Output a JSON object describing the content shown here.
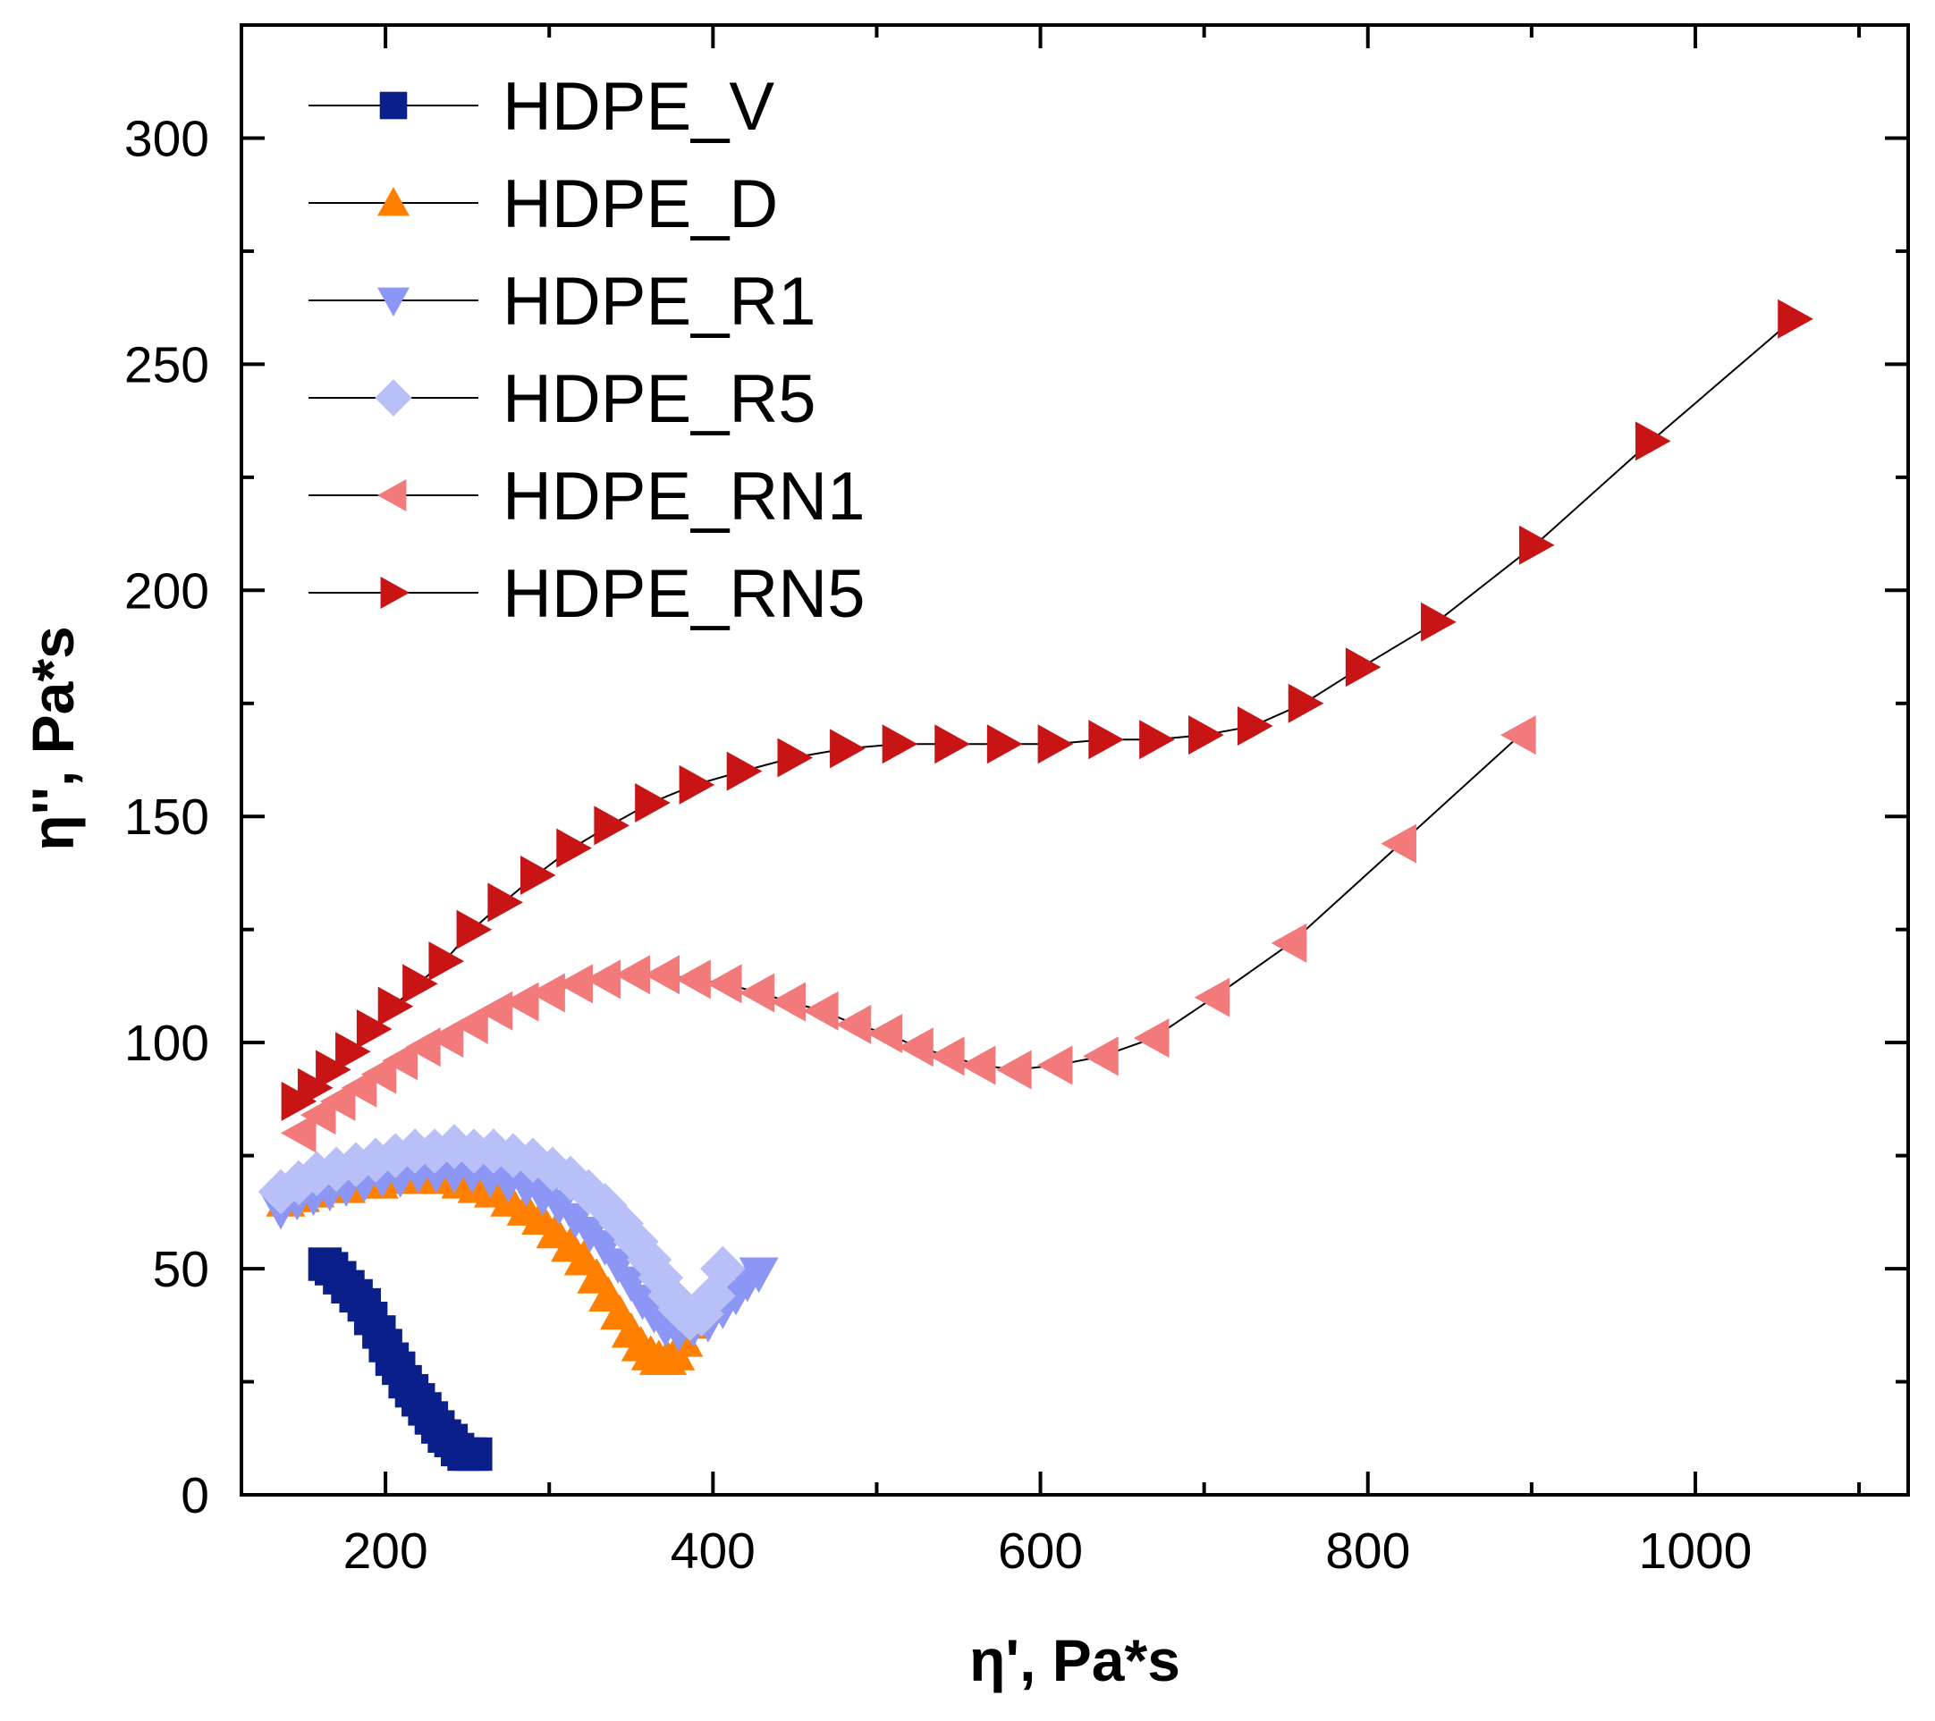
{
  "chart_data": {
    "type": "scatter",
    "xlabel": "η', Pa*s",
    "ylabel": "η'', Pa*s",
    "xlim": [
      112,
      1130
    ],
    "ylim": [
      0,
      325
    ],
    "x_ticks": [
      200,
      400,
      600,
      800,
      1000
    ],
    "y_ticks": [
      0,
      50,
      100,
      150,
      200,
      250,
      300
    ],
    "grid": false,
    "legend_position": "top-left",
    "series": [
      {
        "name": "HDPE_V",
        "marker": "square",
        "color": "#0a1f8a",
        "points": [
          [
            163,
            51
          ],
          [
            167,
            50
          ],
          [
            172,
            48
          ],
          [
            177,
            46
          ],
          [
            182,
            44
          ],
          [
            187,
            42
          ],
          [
            191,
            39
          ],
          [
            196,
            36
          ],
          [
            200,
            33
          ],
          [
            204,
            30
          ],
          [
            208,
            28
          ],
          [
            212,
            25
          ],
          [
            216,
            23
          ],
          [
            220,
            21
          ],
          [
            224,
            19
          ],
          [
            228,
            17
          ],
          [
            232,
            15
          ],
          [
            236,
            13
          ],
          [
            240,
            12
          ],
          [
            244,
            10
          ],
          [
            248,
            9
          ],
          [
            252,
            9
          ],
          [
            255,
            9
          ]
        ]
      },
      {
        "name": "HDPE_D",
        "marker": "triangle-up",
        "color": "#ff7f00",
        "points": [
          [
            139,
            65
          ],
          [
            148,
            66
          ],
          [
            157,
            67
          ],
          [
            166,
            68
          ],
          [
            176,
            68
          ],
          [
            186,
            69
          ],
          [
            196,
            69
          ],
          [
            206,
            70
          ],
          [
            216,
            70
          ],
          [
            226,
            70
          ],
          [
            236,
            70
          ],
          [
            246,
            69
          ],
          [
            256,
            68
          ],
          [
            266,
            67
          ],
          [
            276,
            65
          ],
          [
            286,
            63
          ],
          [
            295,
            61
          ],
          [
            304,
            58
          ],
          [
            313,
            55
          ],
          [
            321,
            52
          ],
          [
            329,
            48
          ],
          [
            336,
            44
          ],
          [
            343,
            40
          ],
          [
            350,
            36
          ],
          [
            356,
            33
          ],
          [
            362,
            31
          ],
          [
            367,
            30
          ],
          [
            372,
            30
          ],
          [
            377,
            31
          ],
          [
            382,
            34
          ],
          [
            387,
            38
          ]
        ]
      },
      {
        "name": "HDPE_R1",
        "marker": "triangle-down",
        "color": "#8c96f5",
        "points": [
          [
            136,
            63
          ],
          [
            146,
            65
          ],
          [
            156,
            66
          ],
          [
            166,
            67
          ],
          [
            176,
            68
          ],
          [
            187,
            69
          ],
          [
            198,
            70
          ],
          [
            209,
            70
          ],
          [
            220,
            71
          ],
          [
            231,
            71
          ],
          [
            242,
            71
          ],
          [
            253,
            71
          ],
          [
            264,
            70
          ],
          [
            275,
            69
          ],
          [
            286,
            68
          ],
          [
            296,
            66
          ],
          [
            306,
            64
          ],
          [
            316,
            61
          ],
          [
            325,
            58
          ],
          [
            334,
            55
          ],
          [
            342,
            51
          ],
          [
            350,
            47
          ],
          [
            357,
            43
          ],
          [
            364,
            40
          ],
          [
            371,
            37
          ],
          [
            379,
            36
          ],
          [
            388,
            37
          ],
          [
            397,
            38
          ],
          [
            406,
            41
          ],
          [
            414,
            44
          ],
          [
            421,
            47
          ],
          [
            428,
            49
          ]
        ]
      },
      {
        "name": "HDPE_R5",
        "marker": "diamond",
        "color": "#b9c0f8",
        "points": [
          [
            136,
            67
          ],
          [
            147,
            69
          ],
          [
            158,
            71
          ],
          [
            170,
            72
          ],
          [
            182,
            73
          ],
          [
            194,
            74
          ],
          [
            206,
            75
          ],
          [
            218,
            76
          ],
          [
            230,
            76
          ],
          [
            242,
            77
          ],
          [
            254,
            76
          ],
          [
            266,
            76
          ],
          [
            278,
            75
          ],
          [
            290,
            74
          ],
          [
            302,
            72
          ],
          [
            313,
            70
          ],
          [
            324,
            67
          ],
          [
            334,
            64
          ],
          [
            344,
            60
          ],
          [
            353,
            56
          ],
          [
            361,
            52
          ],
          [
            368,
            48
          ],
          [
            374,
            44
          ],
          [
            380,
            41
          ],
          [
            386,
            39
          ],
          [
            393,
            40
          ],
          [
            400,
            44
          ],
          [
            406,
            50
          ]
        ]
      },
      {
        "name": "HDPE_RN1",
        "marker": "triangle-left",
        "color": "#f27a7a",
        "points": [
          [
            148,
            80
          ],
          [
            160,
            84
          ],
          [
            172,
            87
          ],
          [
            185,
            90
          ],
          [
            197,
            93
          ],
          [
            210,
            96
          ],
          [
            224,
            99
          ],
          [
            238,
            101
          ],
          [
            253,
            104
          ],
          [
            268,
            107
          ],
          [
            284,
            109
          ],
          [
            300,
            111
          ],
          [
            317,
            113
          ],
          [
            334,
            114
          ],
          [
            352,
            115
          ],
          [
            370,
            115
          ],
          [
            389,
            114
          ],
          [
            408,
            113
          ],
          [
            428,
            111
          ],
          [
            447,
            109
          ],
          [
            467,
            107
          ],
          [
            487,
            104
          ],
          [
            506,
            102
          ],
          [
            525,
            99
          ],
          [
            544,
            97
          ],
          [
            563,
            95
          ],
          [
            585,
            94
          ],
          [
            610,
            95
          ],
          [
            638,
            97
          ],
          [
            669,
            101
          ],
          [
            706,
            110
          ],
          [
            753,
            122
          ],
          [
            820,
            144
          ],
          [
            893,
            168
          ]
        ]
      },
      {
        "name": "HDPE_RN5",
        "marker": "triangle-right",
        "color": "#c81414",
        "points": [
          [
            146,
            87
          ],
          [
            156,
            90
          ],
          [
            167,
            94
          ],
          [
            179,
            98
          ],
          [
            192,
            103
          ],
          [
            205,
            108
          ],
          [
            220,
            113
          ],
          [
            236,
            118
          ],
          [
            253,
            125
          ],
          [
            272,
            131
          ],
          [
            292,
            137
          ],
          [
            314,
            143
          ],
          [
            337,
            148
          ],
          [
            362,
            153
          ],
          [
            389,
            157
          ],
          [
            418,
            160
          ],
          [
            449,
            163
          ],
          [
            481,
            165
          ],
          [
            513,
            166
          ],
          [
            545,
            166
          ],
          [
            577,
            166
          ],
          [
            608,
            166
          ],
          [
            639,
            167
          ],
          [
            670,
            167
          ],
          [
            700,
            168
          ],
          [
            730,
            170
          ],
          [
            761,
            175
          ],
          [
            796,
            183
          ],
          [
            842,
            193
          ],
          [
            902,
            210
          ],
          [
            973,
            233
          ],
          [
            1060,
            260
          ]
        ]
      }
    ]
  }
}
